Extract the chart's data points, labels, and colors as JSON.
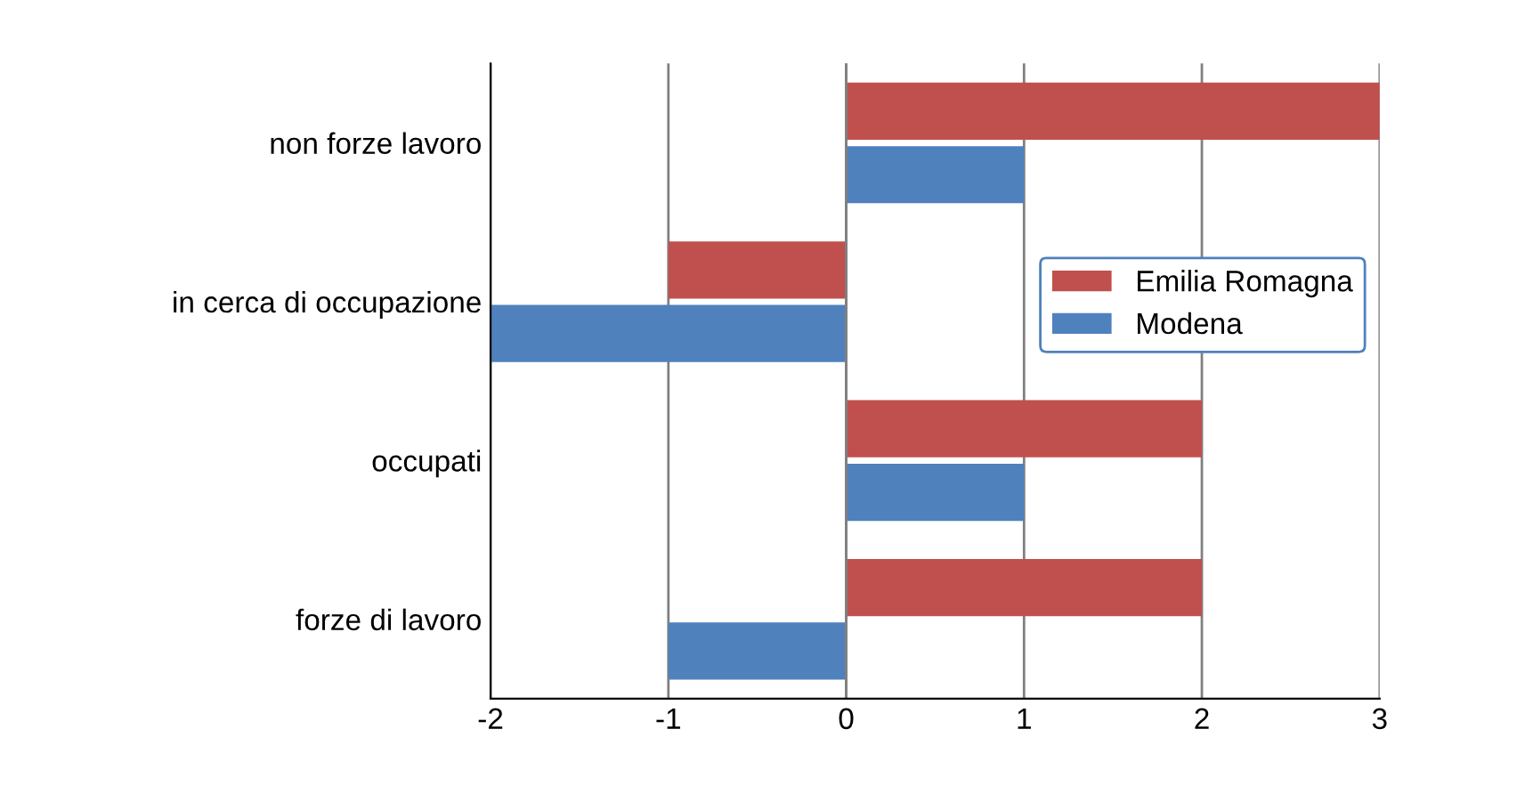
{
  "chart_data": {
    "type": "bar",
    "orientation": "horizontal",
    "categories": [
      "non forze lavoro",
      "in cerca di occupazione",
      "occupati",
      "forze di lavoro"
    ],
    "series": [
      {
        "name": "Emilia Romagna",
        "color": "#c0504d",
        "values": [
          3,
          -1,
          2,
          2
        ]
      },
      {
        "name": "Modena",
        "color": "#4f81bd",
        "values": [
          1,
          -2,
          1,
          -1
        ]
      }
    ],
    "xlim": [
      -2,
      3
    ],
    "xticks": [
      -2,
      -1,
      0,
      1,
      2,
      3
    ],
    "grid": "x",
    "legend": "right"
  }
}
